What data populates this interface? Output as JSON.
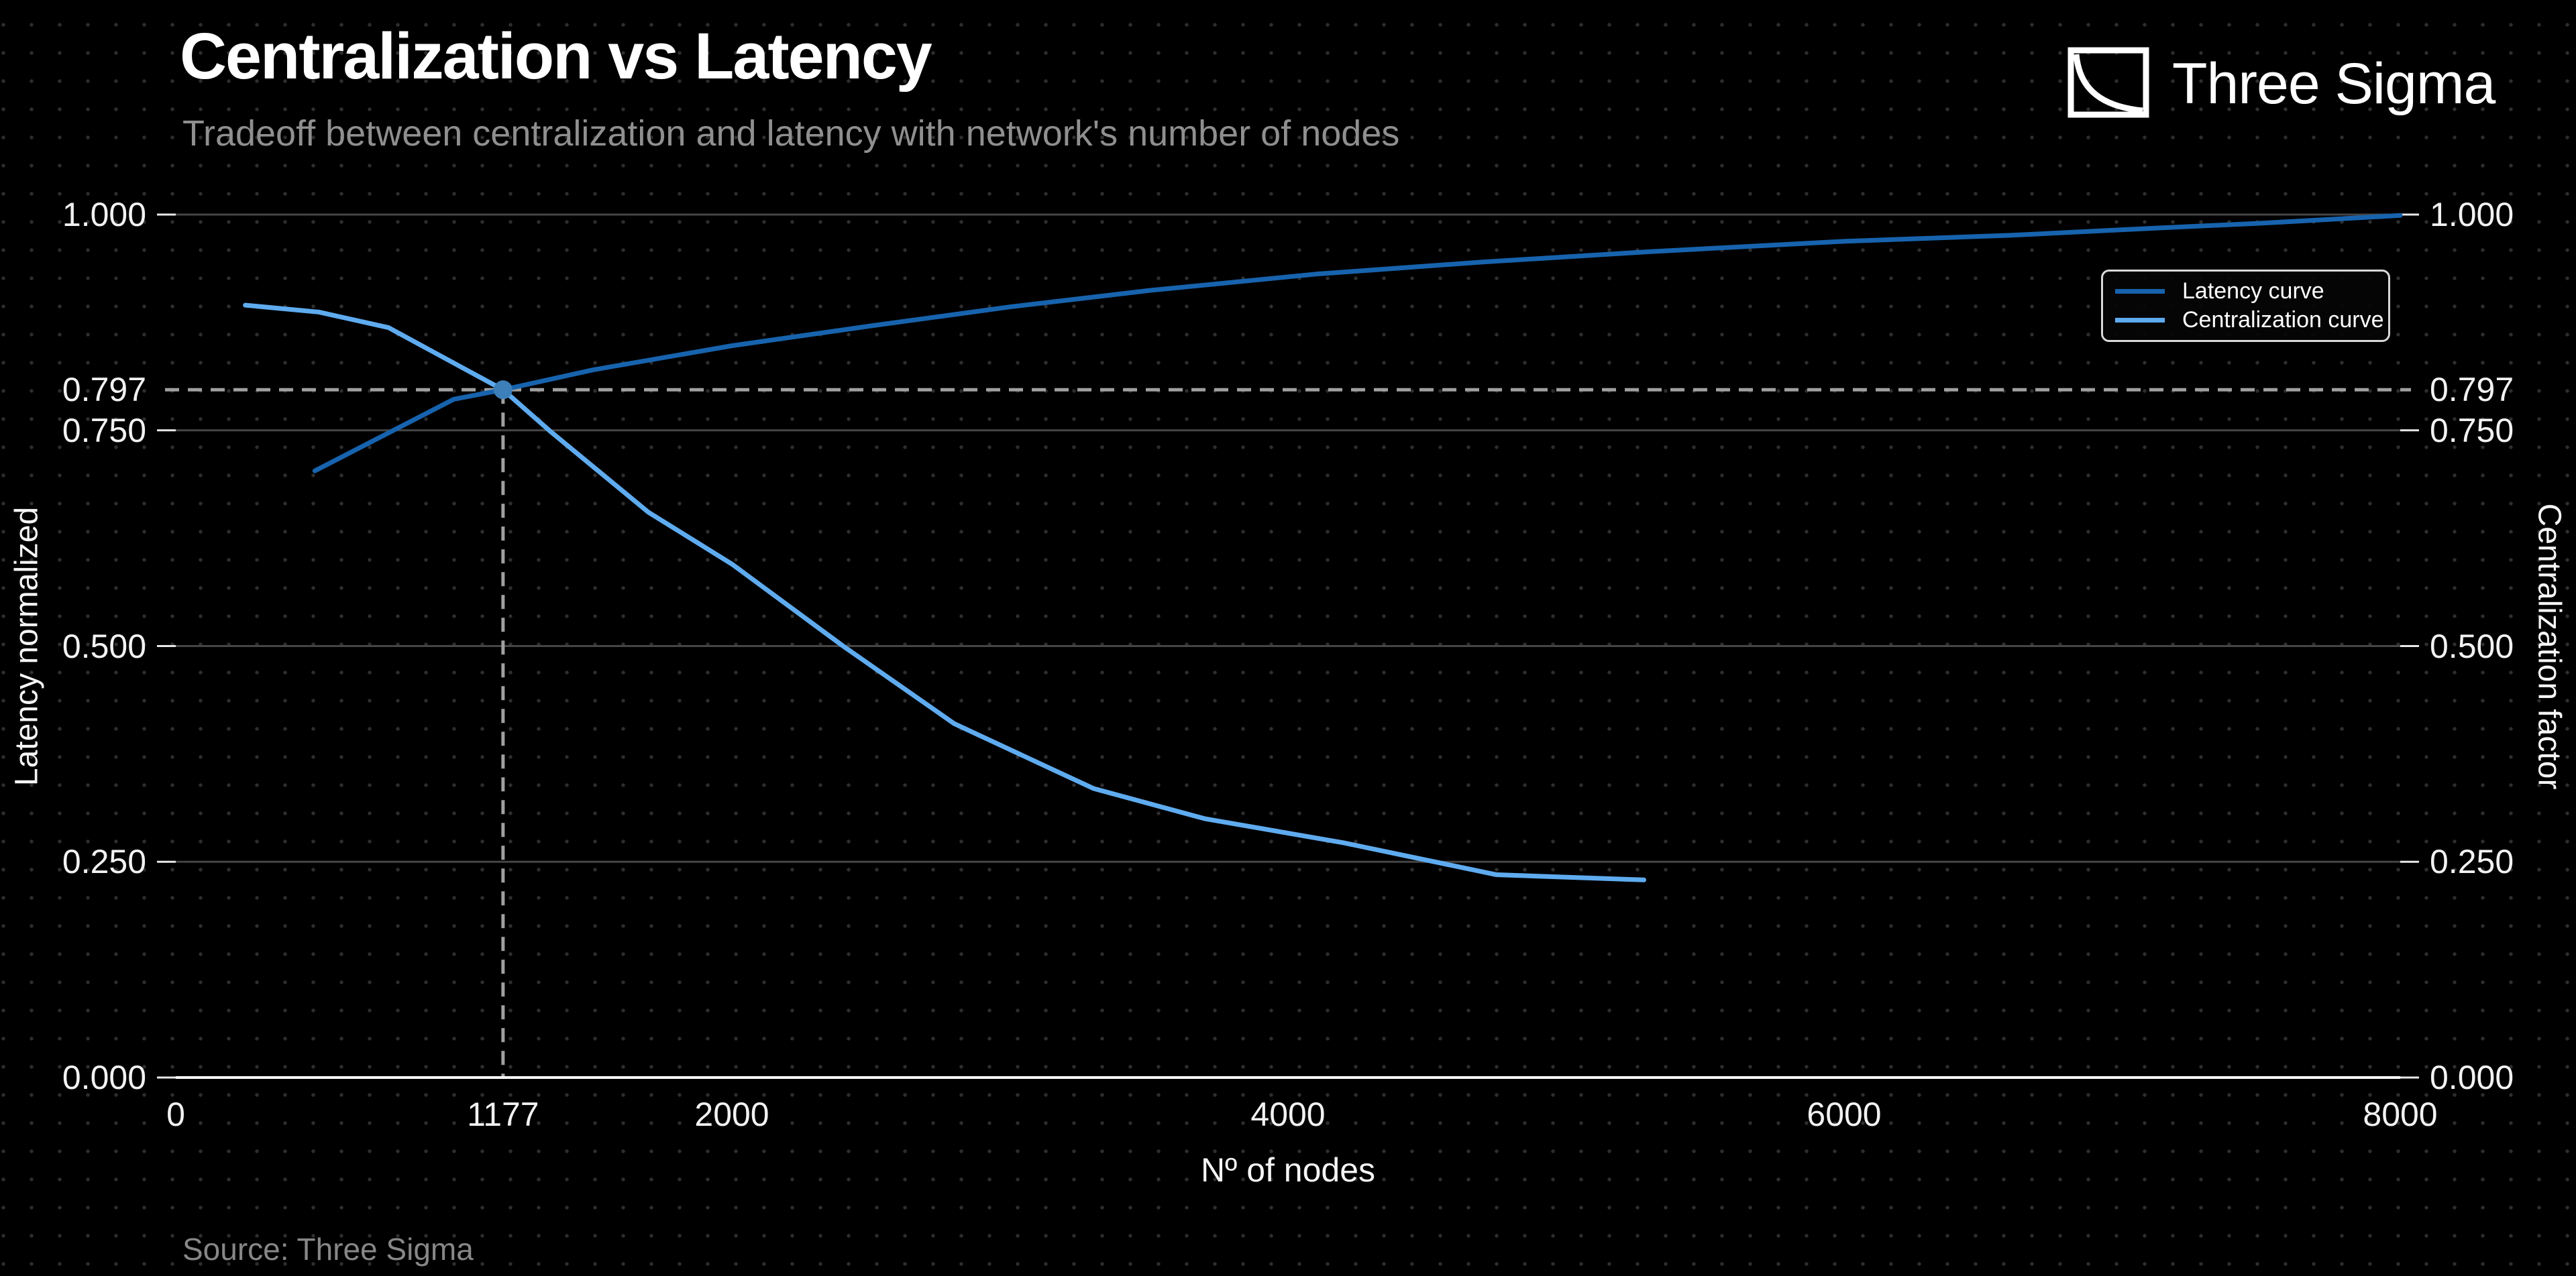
{
  "header": {
    "title": "Centralization vs Latency",
    "subtitle": "Tradeoff between centralization and latency with network's number of nodes",
    "brand": {
      "name": "Three Sigma",
      "logo_icon": "decay-curve-in-box"
    }
  },
  "footer": {
    "source": "Source: Three Sigma"
  },
  "colors": {
    "background": "#000000",
    "dot_grid": "#2e2e2e",
    "grid_line": "#454545",
    "axis_line": "#ffffff",
    "tick_text": "#f2f2f2",
    "subtitle_text": "#8f8f8f",
    "crosshair": "#a0a0a0",
    "latency_curve": "#1763ae",
    "centralization_curve": "#5fabef",
    "highlight_dot": "#3d7fb8"
  },
  "chart_data": {
    "type": "line",
    "title": "Centralization vs Latency",
    "xlabel": "Nº of nodes",
    "ylabel_left": "Latency normalized",
    "ylabel_right": "Centralization factor",
    "xlim": [
      0,
      8000
    ],
    "ylim": [
      0.0,
      1.0
    ],
    "grid": "horizontal",
    "legend_position": "upper right",
    "x_ticks": [
      {
        "value": 0,
        "label": "0"
      },
      {
        "value": 1177,
        "label": "1177"
      },
      {
        "value": 2000,
        "label": "2000"
      },
      {
        "value": 4000,
        "label": "4000"
      },
      {
        "value": 6000,
        "label": "6000"
      },
      {
        "value": 8000,
        "label": "8000"
      }
    ],
    "y_ticks": [
      {
        "value": 0.0,
        "label": "0.000"
      },
      {
        "value": 0.25,
        "label": "0.250"
      },
      {
        "value": 0.5,
        "label": "0.500"
      },
      {
        "value": 0.75,
        "label": "0.750"
      },
      {
        "value": 1.0,
        "label": "1.000"
      }
    ],
    "highlight": {
      "x": 1177,
      "y": 0.797,
      "x_label": "1177",
      "y_label": "0.797",
      "style": "dashed-crosshair-with-dot"
    },
    "series": [
      {
        "name": "Latency curve",
        "color": "#1763ae",
        "points": [
          [
            500,
            0.703
          ],
          [
            1000,
            0.786
          ],
          [
            1177,
            0.797
          ],
          [
            1500,
            0.82
          ],
          [
            2000,
            0.848
          ],
          [
            2500,
            0.871
          ],
          [
            3000,
            0.893
          ],
          [
            3500,
            0.912
          ],
          [
            4100,
            0.931
          ],
          [
            4700,
            0.945
          ],
          [
            5300,
            0.957
          ],
          [
            6000,
            0.969
          ],
          [
            6600,
            0.976
          ],
          [
            7100,
            0.984
          ],
          [
            7500,
            0.99
          ],
          [
            8000,
            0.999
          ]
        ]
      },
      {
        "name": "Centralization curve",
        "color": "#5fabef",
        "points": [
          [
            250,
            0.895
          ],
          [
            515,
            0.887
          ],
          [
            765,
            0.869
          ],
          [
            1177,
            0.797
          ],
          [
            1350,
            0.748
          ],
          [
            1700,
            0.655
          ],
          [
            2000,
            0.595
          ],
          [
            2400,
            0.5
          ],
          [
            2800,
            0.41
          ],
          [
            3300,
            0.335
          ],
          [
            3700,
            0.3
          ],
          [
            4200,
            0.272
          ],
          [
            4750,
            0.235
          ],
          [
            5280,
            0.229
          ]
        ]
      }
    ]
  }
}
